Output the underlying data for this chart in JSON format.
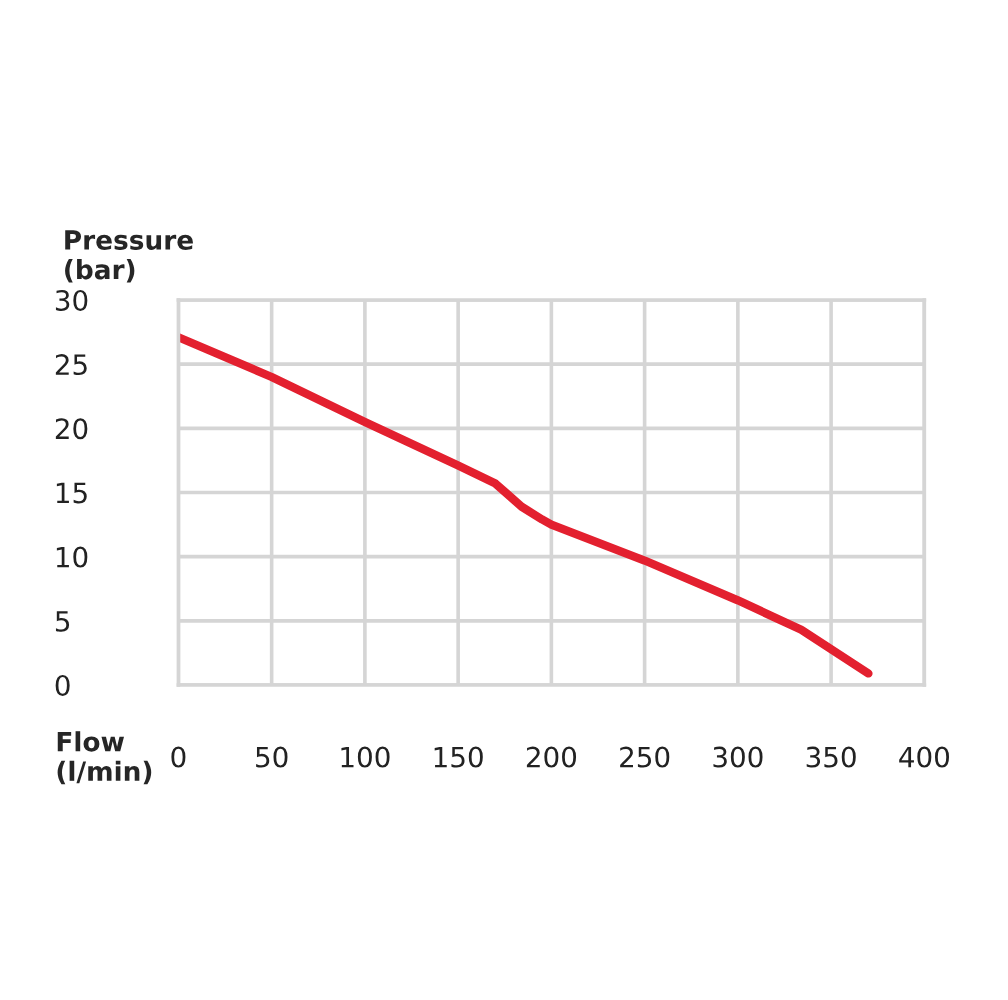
{
  "chart_data": {
    "type": "line",
    "xlabel": "Flow\n(l/min)",
    "ylabel": "Pressure\n(bar)",
    "x": [
      0,
      50,
      100,
      150,
      170,
      184,
      195,
      200,
      250,
      300,
      334,
      370
    ],
    "series": [
      {
        "color": "#e3202f",
        "values": [
          27.1,
          24.0,
          20.5,
          17.1,
          15.7,
          13.9,
          12.9,
          12.5,
          9.7,
          6.6,
          4.3,
          0.9
        ]
      }
    ],
    "xlim": [
      0,
      400
    ],
    "xticks": [
      0,
      50,
      100,
      150,
      200,
      250,
      300,
      350,
      400
    ],
    "ylim": [
      0,
      30
    ],
    "yticks": [
      0,
      5,
      10,
      15,
      20,
      25,
      30
    ],
    "grid": true,
    "legend": false,
    "marker": "none",
    "line_style": "solid"
  }
}
